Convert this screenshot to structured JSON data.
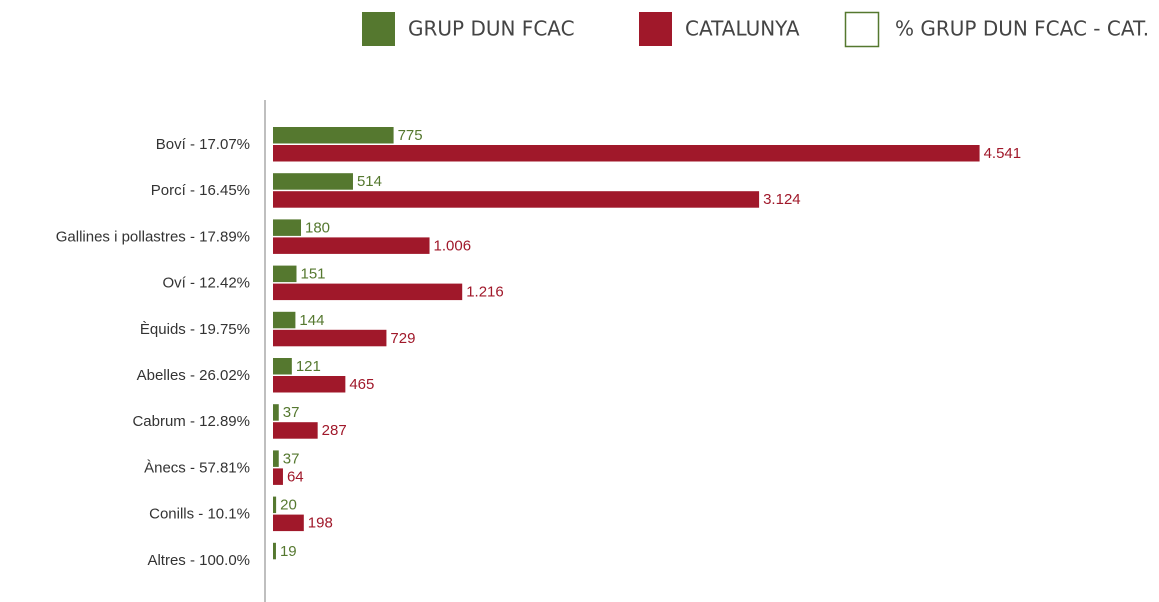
{
  "chart_data": {
    "type": "hbar",
    "categories": [
      "Boví - 17.07%",
      "Porcí - 16.45%",
      "Gallines i pollastres - 17.89%",
      "Oví - 12.42%",
      "Èquids - 19.75%",
      "Abelles - 26.02%",
      "Cabrum - 12.89%",
      "Ànecs - 57.81%",
      "Conills - 10.1%",
      "Altres - 100.0%"
    ],
    "series": [
      {
        "name": "GRUP DUN FCAC",
        "color": "#55782f",
        "values": [
          775,
          514,
          180,
          151,
          144,
          121,
          37,
          37,
          20,
          19
        ],
        "value_labels": [
          "775",
          "514",
          "180",
          "151",
          "144",
          "121",
          "37",
          "37",
          "20",
          "19"
        ]
      },
      {
        "name": "CATALUNYA",
        "color": "#a0182a",
        "values": [
          4541,
          3124,
          1006,
          1216,
          729,
          465,
          287,
          64,
          198,
          null
        ],
        "value_labels": [
          "4.541",
          "3.124",
          "1.006",
          "1.216",
          "729",
          "465",
          "287",
          "64",
          "198",
          null
        ]
      }
    ],
    "extra_legend": {
      "name": "% GRUP DUN FCAC - CAT.",
      "color": "#55782f"
    },
    "xlim": [
      0,
      5000
    ]
  }
}
